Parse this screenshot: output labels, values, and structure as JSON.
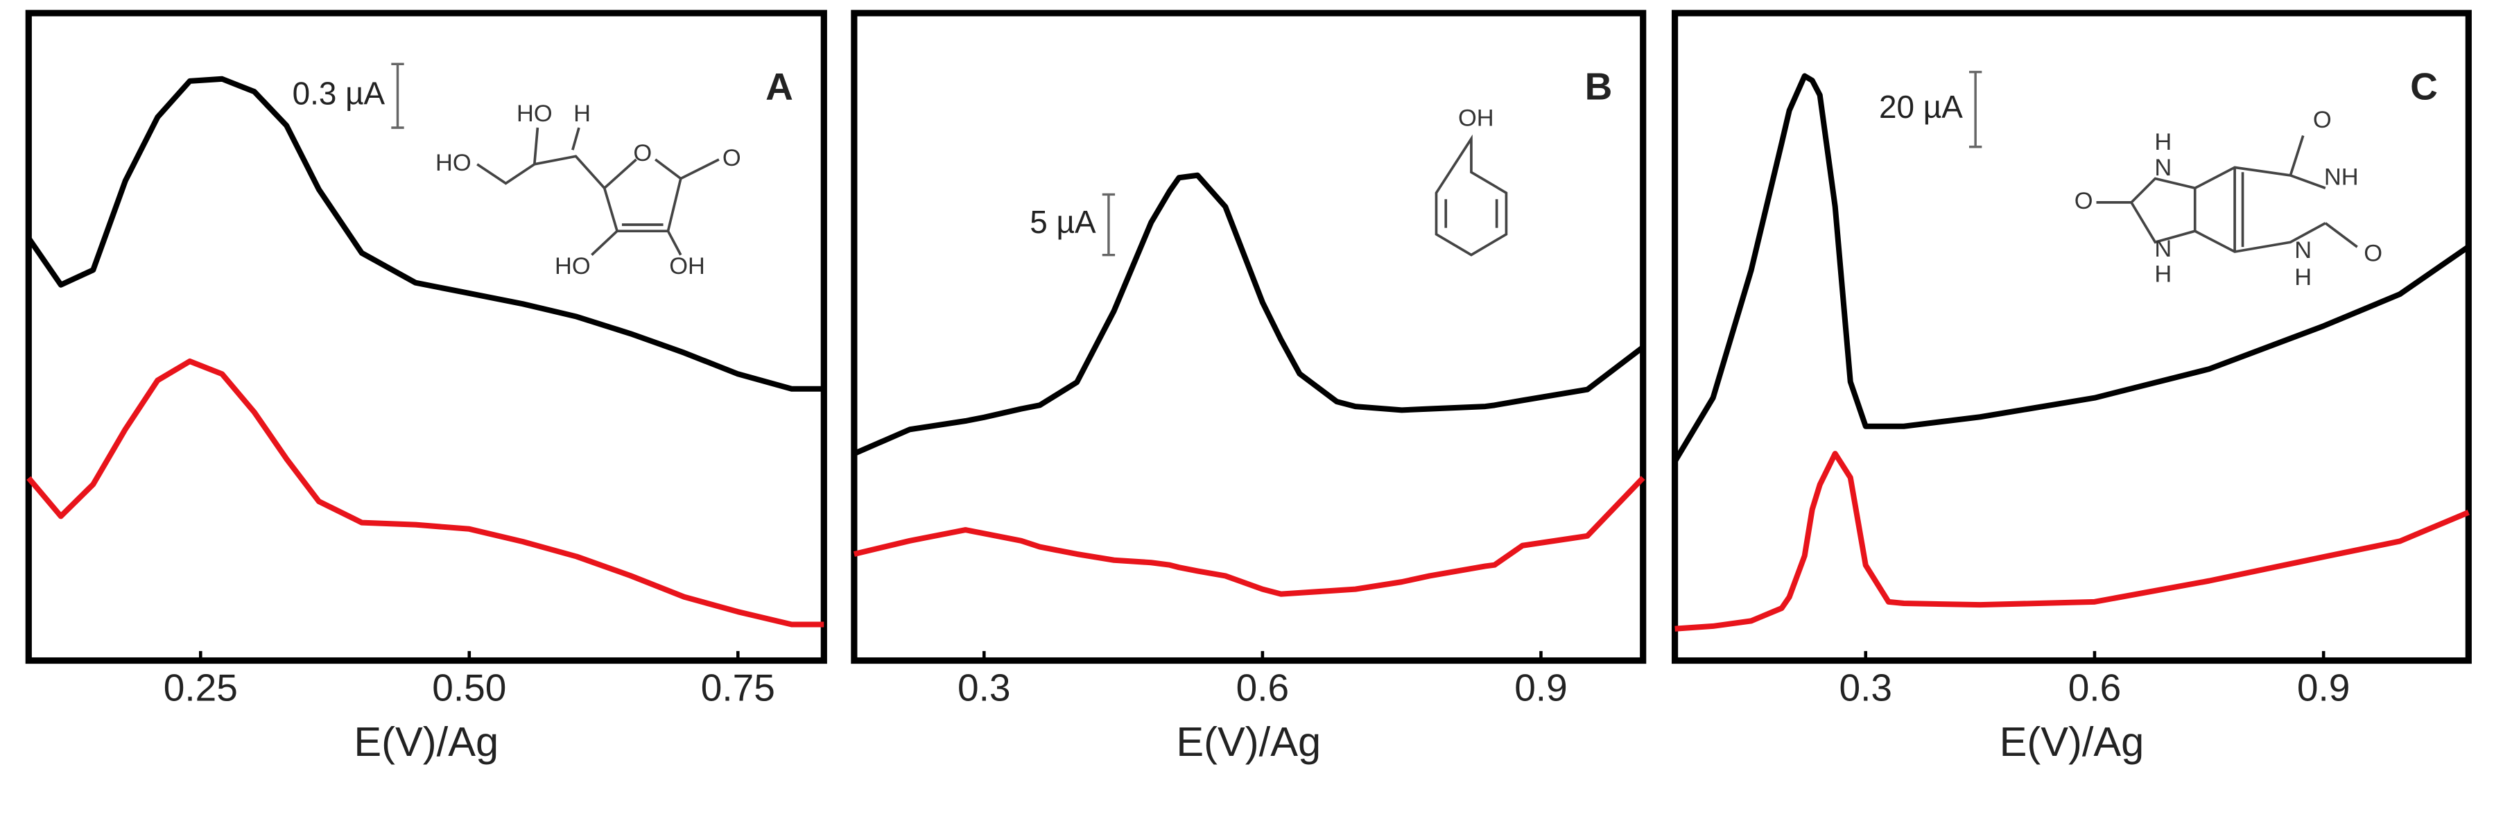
{
  "chart_data": [
    {
      "type": "line",
      "panel_label": "A",
      "x_label": "E(V)/Ag",
      "scale_bar": {
        "value": 0.3,
        "label": "0.3 µA"
      },
      "structure_labels": [
        "HO",
        "H",
        "O",
        "O",
        "HO",
        "HO",
        "OH"
      ],
      "x": [
        0.09,
        0.12,
        0.15,
        0.18,
        0.21,
        0.24,
        0.27,
        0.3,
        0.33,
        0.36,
        0.4,
        0.45,
        0.5,
        0.55,
        0.6,
        0.65,
        0.7,
        0.75,
        0.8,
        0.83
      ],
      "series": [
        {
          "color": "#000000",
          "values": [
            1.99,
            1.77,
            1.84,
            2.26,
            2.56,
            2.73,
            2.74,
            2.68,
            2.52,
            2.22,
            1.92,
            1.78,
            1.73,
            1.68,
            1.62,
            1.54,
            1.45,
            1.35,
            1.28,
            1.28
          ]
        },
        {
          "color": "#e8141b",
          "values": [
            0.86,
            0.68,
            0.83,
            1.09,
            1.32,
            1.41,
            1.35,
            1.17,
            0.95,
            0.75,
            0.65,
            0.64,
            0.62,
            0.56,
            0.49,
            0.4,
            0.3,
            0.23,
            0.17,
            0.17
          ]
        }
      ],
      "xlim": [
        0.09,
        0.83
      ],
      "xticks": [
        0.25,
        {
          "value": 0.5,
          "label": "0.50"
        },
        0.75
      ],
      "ylim": [
        0,
        3.05
      ]
    },
    {
      "type": "line",
      "panel_label": "B",
      "x_label": "E(V)/Ag",
      "scale_bar": {
        "value": 5,
        "label": "5 µA"
      },
      "structure_labels": [
        "OH"
      ],
      "x": [
        0.16,
        0.22,
        0.28,
        0.3,
        0.34,
        0.36,
        0.4,
        0.44,
        0.48,
        0.5,
        0.51,
        0.53,
        0.56,
        0.6,
        0.62,
        0.64,
        0.68,
        0.7,
        0.75,
        0.78,
        0.84,
        0.85,
        0.88,
        0.95,
        1.01
      ],
      "series": [
        {
          "color": "#000000",
          "values": [
            17.1,
            19.1,
            19.8,
            20.1,
            20.8,
            21.1,
            23.0,
            28.9,
            36.2,
            38.8,
            39.9,
            40.1,
            37.5,
            29.6,
            26.5,
            23.7,
            21.4,
            21.0,
            20.7,
            20.8,
            21.0,
            21.1,
            21.5,
            22.4,
            25.9
          ]
        },
        {
          "color": "#e8141b",
          "values": [
            8.8,
            9.9,
            10.8,
            10.5,
            9.9,
            9.4,
            8.8,
            8.3,
            8.1,
            7.9,
            7.7,
            7.4,
            7.0,
            5.9,
            5.5,
            5.6,
            5.8,
            5.9,
            6.5,
            7.0,
            7.8,
            7.9,
            9.5,
            10.3,
            15.1
          ]
        }
      ],
      "xlim": [
        0.16,
        1.01
      ],
      "xticks": [
        0.3,
        0.6,
        0.9
      ],
      "ylim": [
        0,
        53.5
      ]
    },
    {
      "type": "line",
      "panel_label": "C",
      "x_label": "E(V)/Ag",
      "scale_bar": {
        "value": 20,
        "label": "20 µA"
      },
      "structure_labels": [
        "O",
        "NH",
        "O",
        "N",
        "H",
        "H",
        "N",
        "O",
        "N",
        "H"
      ],
      "x": [
        0.05,
        0.1,
        0.15,
        0.19,
        0.2,
        0.22,
        0.23,
        0.24,
        0.26,
        0.28,
        0.3,
        0.33,
        0.35,
        0.45,
        0.6,
        0.75,
        0.9,
        1.0,
        1.09
      ],
      "series": [
        {
          "color": "#000000",
          "values": [
            53.2,
            70.2,
            104.3,
            138.3,
            147.0,
            156.2,
            155.0,
            151.1,
            121.3,
            74.5,
            62.6,
            62.6,
            62.6,
            65.1,
            70.2,
            77.9,
            89.4,
            97.9,
            110.6
          ]
        },
        {
          "color": "#e8141b",
          "values": [
            8.5,
            9.2,
            10.6,
            14.0,
            17.0,
            28.0,
            40.4,
            47.0,
            55.3,
            48.9,
            25.5,
            15.7,
            15.3,
            14.9,
            15.7,
            21.3,
            27.7,
            31.9,
            39.6
          ]
        }
      ],
      "xlim": [
        0.05,
        1.09
      ],
      "xticks": [
        0.3,
        0.6,
        0.9
      ],
      "ylim": [
        0,
        173
      ]
    }
  ]
}
